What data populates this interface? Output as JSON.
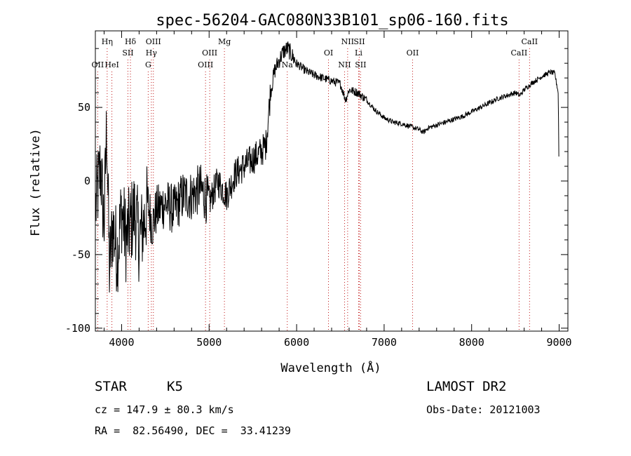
{
  "chart_data": {
    "type": "line",
    "title": "spec-56204-GAC080N33B101_sp06-160.fits",
    "xlabel": "Wavelength (Å)",
    "ylabel": "Flux (relative)",
    "xlim": [
      3700,
      9100
    ],
    "ylim": [
      -102,
      102
    ],
    "x_ticks": [
      4000,
      5000,
      6000,
      7000,
      8000,
      9000
    ],
    "y_ticks": [
      -100,
      -50,
      0,
      50
    ],
    "series": [
      {
        "x": [
          3700,
          3760,
          3800,
          3830,
          3860,
          3900,
          3950,
          4000,
          4050,
          4100,
          4150,
          4200,
          4250,
          4300,
          4350,
          4400,
          4500,
          4600,
          4700,
          4800,
          4900,
          5000,
          5100,
          5200,
          5300,
          5400,
          5500,
          5600,
          5650,
          5700,
          5750,
          5800,
          5850,
          5900,
          5950,
          6000,
          6100,
          6200,
          6300,
          6400,
          6500,
          6560,
          6600,
          6700,
          6800,
          6900,
          7000,
          7100,
          7200,
          7300,
          7400,
          7450,
          7500,
          7600,
          7700,
          7800,
          7900,
          8000,
          8100,
          8200,
          8300,
          8400,
          8500,
          8550,
          8600,
          8700,
          8800,
          8900,
          8950,
          8990,
          9000
        ],
        "y": [
          -20,
          10,
          -30,
          40,
          -60,
          -30,
          -50,
          -20,
          -40,
          -30,
          -20,
          -40,
          -30,
          -15,
          -30,
          -20,
          -15,
          -20,
          -10,
          -10,
          -5,
          -15,
          0,
          -10,
          5,
          10,
          15,
          20,
          25,
          60,
          75,
          82,
          88,
          90,
          85,
          80,
          75,
          72,
          70,
          68,
          66,
          55,
          62,
          60,
          55,
          48,
          43,
          40,
          39,
          37,
          35,
          33,
          36,
          38,
          40,
          42,
          44,
          47,
          50,
          53,
          56,
          58,
          60,
          58,
          62,
          67,
          71,
          74,
          73,
          60,
          0
        ]
      }
    ],
    "lines": [
      {
        "label": "Hη",
        "x": 3835,
        "row": 1
      },
      {
        "label": "OII",
        "x": 3727,
        "row": 3
      },
      {
        "label": "HeI",
        "x": 3889,
        "row": 3
      },
      {
        "label": "Hδ",
        "x": 4101,
        "row": 1
      },
      {
        "label": "SII",
        "x": 4072,
        "row": 2
      },
      {
        "label": "OIII",
        "x": 4363,
        "row": 1
      },
      {
        "label": "Hγ",
        "x": 4340,
        "row": 2
      },
      {
        "label": "G",
        "x": 4304,
        "row": 3
      },
      {
        "label": "Mg",
        "x": 5175,
        "row": 1
      },
      {
        "label": "OIII",
        "x": 5007,
        "row": 2
      },
      {
        "label": "OIII",
        "x": 4959,
        "row": 3
      },
      {
        "label": "Na",
        "x": 5893,
        "row": 3
      },
      {
        "label": "NII",
        "x": 6583,
        "row": 1
      },
      {
        "label": "SII",
        "x": 6716,
        "row": 1
      },
      {
        "label": "OI",
        "x": 6364,
        "row": 2
      },
      {
        "label": "Li",
        "x": 6708,
        "row": 2
      },
      {
        "label": "NII",
        "x": 6548,
        "row": 3
      },
      {
        "label": "SII",
        "x": 6731,
        "row": 3
      },
      {
        "label": "OII",
        "x": 7325,
        "row": 2
      },
      {
        "label": "CaII",
        "x": 8662,
        "row": 1
      },
      {
        "label": "CaII",
        "x": 8542,
        "row": 2
      }
    ],
    "grid": false,
    "legend": "none"
  },
  "info": {
    "object_type": "STAR",
    "subclass": "K5",
    "survey": "LAMOST DR2",
    "cz": "cz = 147.9 ± 80.3 km/s",
    "obs_date": "Obs-Date: 20121003",
    "radec": "RA =  82.56490, DEC =  33.41239"
  }
}
